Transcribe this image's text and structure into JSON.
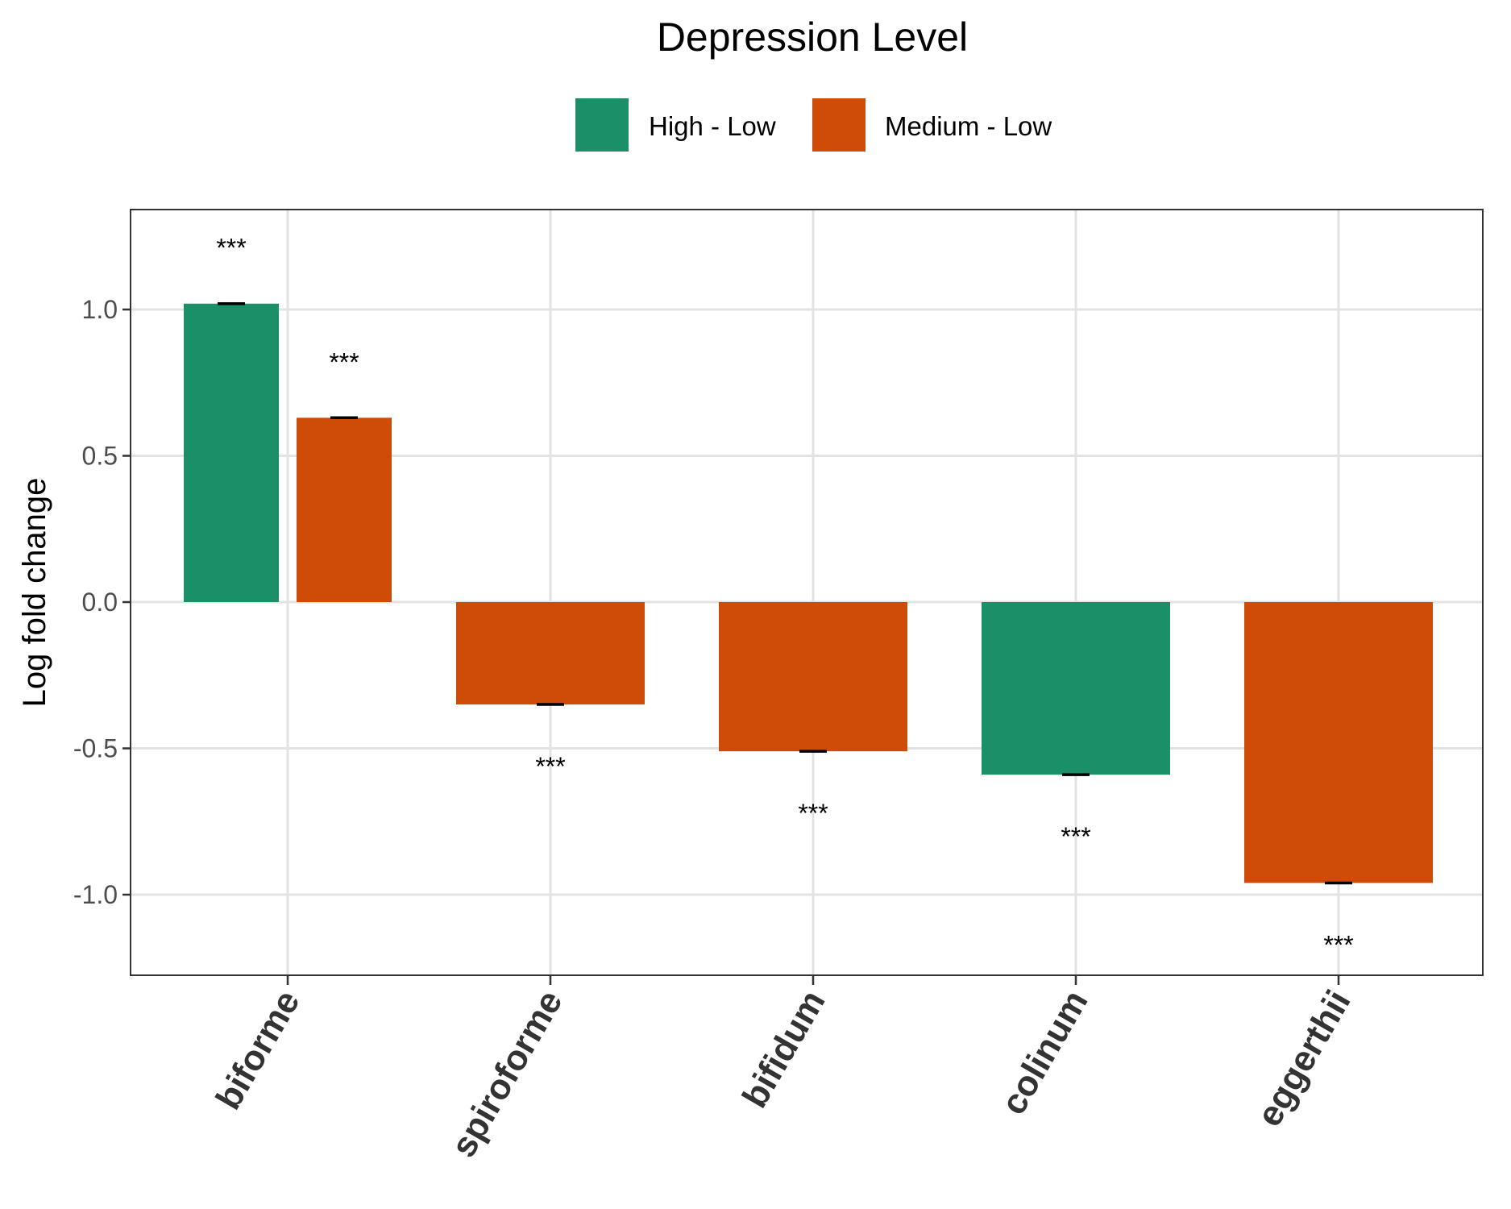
{
  "chart_data": {
    "type": "bar",
    "legend_title": "Depression Level",
    "legend_position": "top",
    "ylabel": "Log fold change",
    "xlabel": "",
    "ylim": [
      -1.28,
      1.33
    ],
    "yticks": [
      1.0,
      0.5,
      0.0,
      -0.5,
      -1.0
    ],
    "ytick_labels": [
      "1.0",
      "0.5",
      "0.0",
      "-0.5",
      "-1.0"
    ],
    "grid": true,
    "categories": [
      "biforme",
      "spiroforme",
      "bifidum",
      "colinum",
      "eggerthii"
    ],
    "series": [
      {
        "name": "High - Low",
        "color": "#1b9068"
      },
      {
        "name": "Medium - Low",
        "color": "#cf4b08"
      }
    ],
    "bars": [
      {
        "category": "biforme",
        "series": "High - Low",
        "value": 1.02,
        "error": 0.003,
        "label": "***"
      },
      {
        "category": "biforme",
        "series": "Medium - Low",
        "value": 0.63,
        "error": 0.003,
        "label": "***"
      },
      {
        "category": "spiroforme",
        "series": "Medium - Low",
        "value": -0.35,
        "error": 0.003,
        "label": "***"
      },
      {
        "category": "bifidum",
        "series": "Medium - Low",
        "value": -0.51,
        "error": 0.003,
        "label": "***"
      },
      {
        "category": "colinum",
        "series": "High - Low",
        "value": -0.59,
        "error": 0.003,
        "label": "***"
      },
      {
        "category": "eggerthii",
        "series": "Medium - Low",
        "value": -0.96,
        "error": 0.003,
        "label": "***"
      }
    ]
  }
}
